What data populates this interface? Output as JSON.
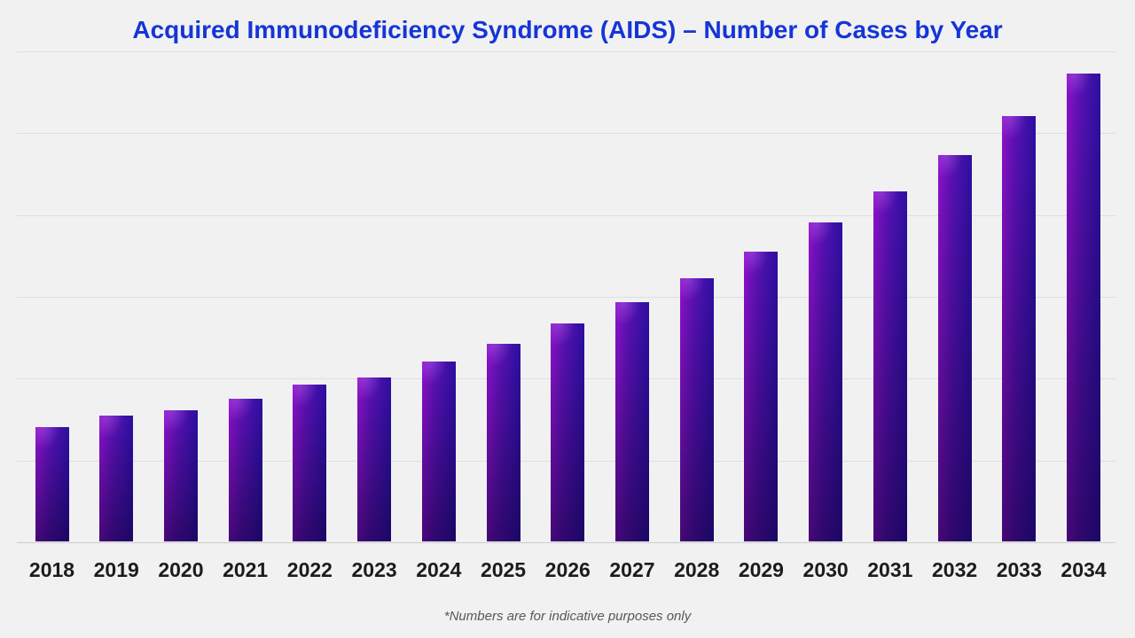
{
  "page": {
    "background_color": "#f1f1f2"
  },
  "title": {
    "text": "Acquired Immunodeficiency Syndrome (AIDS) – Number of Cases by Year",
    "color": "#1535d6"
  },
  "footnote": {
    "text": "*Numbers are for indicative purposes only",
    "color": "#585858"
  },
  "chart_data": {
    "type": "bar",
    "title": "Acquired Immunodeficiency Syndrome (AIDS) – Number of Cases by Year",
    "categories": [
      "2018",
      "2019",
      "2020",
      "2021",
      "2022",
      "2023",
      "2024",
      "2025",
      "2026",
      "2027",
      "2028",
      "2029",
      "2030",
      "2031",
      "2032",
      "2033",
      "2034"
    ],
    "values": [
      700,
      770,
      800,
      870,
      960,
      1000,
      1100,
      1210,
      1330,
      1460,
      1610,
      1770,
      1950,
      2140,
      2360,
      2600,
      2860
    ],
    "xlabel": "",
    "ylabel": "",
    "ylim": [
      0,
      3000
    ],
    "gridline_step": 500,
    "grid": "horizontal-only",
    "y_axis_tick_labels_visible": false,
    "legend_position": "none",
    "bar_gradient": {
      "top_left": "#8d12cc",
      "top_right": "#2c10a2",
      "bottom_left": "#3a0a70",
      "bottom_right": "#140b85"
    },
    "gridline_color": "#dedee0",
    "x_tick_label_color": "#1c1c1c"
  }
}
